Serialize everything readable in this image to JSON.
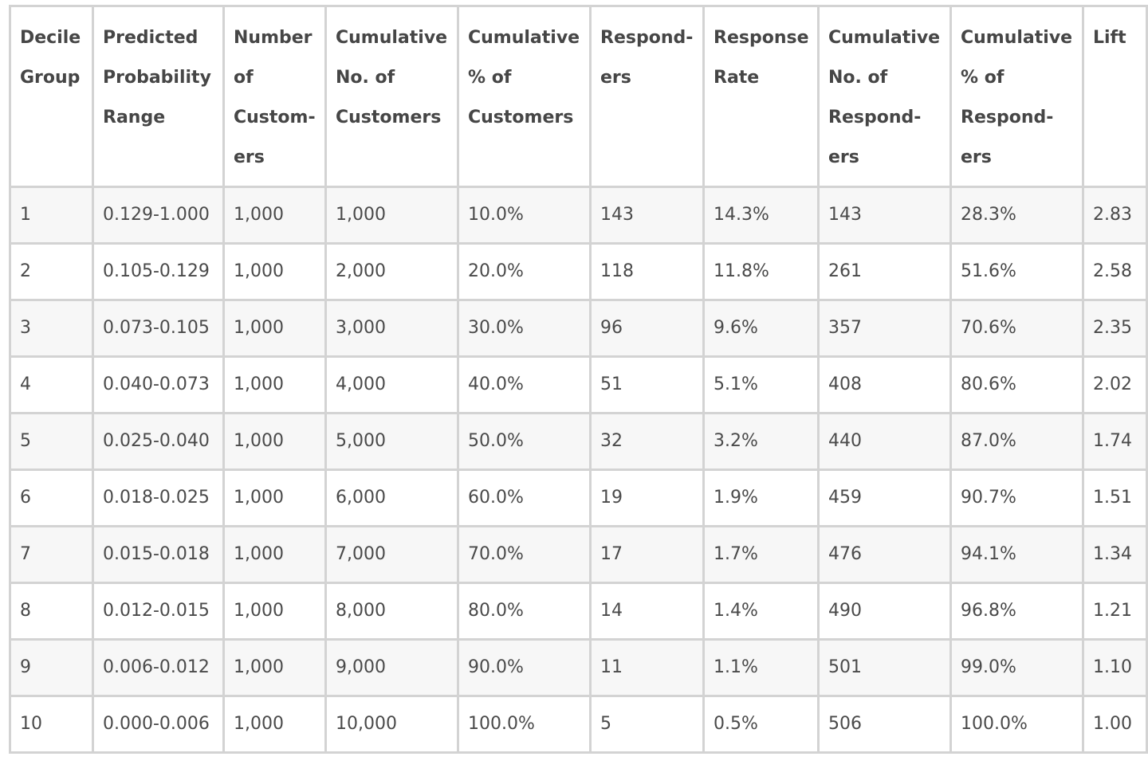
{
  "table": {
    "headers": [
      "Decile\nGroup",
      "Predicted\nProbability\nRange",
      "Number\nof\nCustom-\ners",
      "Cumulative\nNo. of\nCustomers",
      "Cumulative\n% of\nCustomers",
      "Respond-\ners",
      "Response\nRate",
      "Cumulative\nNo. of\nRespond-\ners",
      "Cumulative\n% of\nRespond-\ners",
      "Lift"
    ],
    "rows": [
      [
        "1",
        "0.129-1.000",
        "1,000",
        "1,000",
        "10.0%",
        "143",
        "14.3%",
        "143",
        "28.3%",
        "2.83"
      ],
      [
        "2",
        "0.105-0.129",
        "1,000",
        "2,000",
        "20.0%",
        "118",
        "11.8%",
        "261",
        "51.6%",
        "2.58"
      ],
      [
        "3",
        "0.073-0.105",
        "1,000",
        "3,000",
        "30.0%",
        "96",
        "9.6%",
        "357",
        "70.6%",
        "2.35"
      ],
      [
        "4",
        "0.040-0.073",
        "1,000",
        "4,000",
        "40.0%",
        "51",
        "5.1%",
        "408",
        "80.6%",
        "2.02"
      ],
      [
        "5",
        "0.025-0.040",
        "1,000",
        "5,000",
        "50.0%",
        "32",
        "3.2%",
        "440",
        "87.0%",
        "1.74"
      ],
      [
        "6",
        "0.018-0.025",
        "1,000",
        "6,000",
        "60.0%",
        "19",
        "1.9%",
        "459",
        "90.7%",
        "1.51"
      ],
      [
        "7",
        "0.015-0.018",
        "1,000",
        "7,000",
        "70.0%",
        "17",
        "1.7%",
        "476",
        "94.1%",
        "1.34"
      ],
      [
        "8",
        "0.012-0.015",
        "1,000",
        "8,000",
        "80.0%",
        "14",
        "1.4%",
        "490",
        "96.8%",
        "1.21"
      ],
      [
        "9",
        "0.006-0.012",
        "1,000",
        "9,000",
        "90.0%",
        "11",
        "1.1%",
        "501",
        "99.0%",
        "1.10"
      ],
      [
        "10",
        "0.000-0.006",
        "1,000",
        "10,000",
        "100.0%",
        "5",
        "0.5%",
        "506",
        "100.0%",
        "1.00"
      ]
    ]
  }
}
